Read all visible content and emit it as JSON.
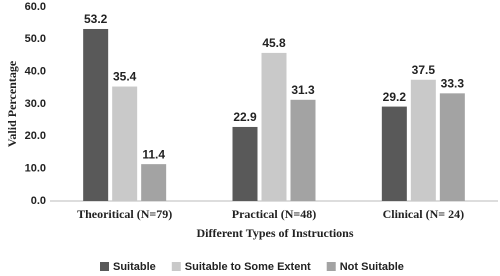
{
  "chart_data": {
    "type": "bar",
    "xlabel": "Different Types of Instructions",
    "ylabel": "Valid Percentage",
    "categories": [
      "Theoritical (N=79)",
      "Practical (N=48)",
      "Clinical (N= 24)"
    ],
    "series": [
      {
        "name": "Suitable",
        "color": "#595959",
        "values": [
          53.2,
          22.9,
          29.2
        ]
      },
      {
        "name": "Suitable to Some Extent",
        "color": "#c9c9c9",
        "values": [
          35.4,
          45.8,
          37.5
        ]
      },
      {
        "name": "Not Suitable",
        "color": "#a3a3a3",
        "values": [
          11.4,
          31.3,
          33.3
        ]
      }
    ],
    "ylim": [
      0,
      60
    ],
    "yticks": [
      {
        "value": 0,
        "label": "0.0"
      },
      {
        "value": 10,
        "label": "10.0"
      },
      {
        "value": 20,
        "label": "20.0"
      },
      {
        "value": 30,
        "label": "30.0"
      },
      {
        "value": 40,
        "label": "40.0"
      },
      {
        "value": 50,
        "label": "50.0"
      },
      {
        "value": 60,
        "label": "60.0"
      }
    ],
    "grid": false
  }
}
